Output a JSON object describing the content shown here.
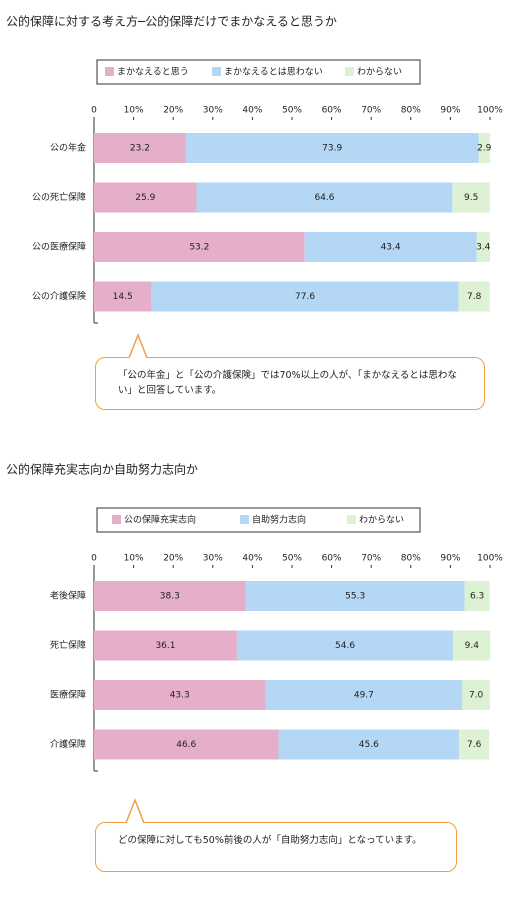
{
  "chart_data": [
    {
      "type": "stacked-bar",
      "title": "公的保障に対する考え方─公的保障だけでまかなえると思うか",
      "categories": [
        "公の年金",
        "公の死亡保障",
        "公の医療保障",
        "公の介護保険"
      ],
      "series": [
        {
          "name": "まかなえると思う",
          "color": "#e5afc9",
          "values": [
            23.2,
            25.9,
            53.2,
            14.5
          ]
        },
        {
          "name": "まかなえるとは思わない",
          "color": "#b3d7f5",
          "values": [
            73.9,
            64.6,
            43.4,
            77.6
          ]
        },
        {
          "name": "わからない",
          "color": "#ddf2d5",
          "values": [
            2.9,
            9.5,
            3.4,
            7.8
          ]
        }
      ],
      "xlim": [
        0,
        100
      ],
      "xticks": [
        0,
        {
          "value": 10,
          "label": "10%"
        },
        {
          "value": 20,
          "label": "20%"
        },
        {
          "value": 30,
          "label": "30%"
        },
        {
          "value": 40,
          "label": "40%"
        },
        {
          "value": 50,
          "label": "50%"
        },
        {
          "value": 60,
          "label": "60%"
        },
        {
          "value": 70,
          "label": "70%"
        },
        {
          "value": 80,
          "label": "80%"
        },
        {
          "value": 90,
          "label": "90%"
        },
        {
          "value": 100,
          "label": "100%"
        }
      ],
      "annotation": "「公の年金」と「公の介護保険」では70%以上の人が、「まかなえるとは思わない」と回答しています。"
    },
    {
      "type": "stacked-bar",
      "title": "公的保障充実志向か自助努力志向か",
      "categories": [
        "老後保障",
        "死亡保障",
        "医療保障",
        "介護保障"
      ],
      "series": [
        {
          "name": "公の保障充実志向",
          "color": "#e5afc9",
          "values": [
            38.3,
            36.1,
            43.3,
            46.6
          ]
        },
        {
          "name": "自助努力志向",
          "color": "#b3d7f5",
          "values": [
            55.3,
            54.6,
            49.7,
            45.6
          ]
        },
        {
          "name": "わからない",
          "color": "#ddf2d5",
          "values": [
            6.3,
            9.4,
            7.0,
            7.6
          ],
          "value_labels": [
            "6.3",
            "9.4",
            "7.0",
            "7.6"
          ]
        }
      ],
      "xlim": [
        0,
        100
      ],
      "xticks": [
        0,
        {
          "value": 10,
          "label": "10%"
        },
        {
          "value": 20,
          "label": "20%"
        },
        {
          "value": 30,
          "label": "30%"
        },
        {
          "value": 40,
          "label": "40%"
        },
        {
          "value": 50,
          "label": "50%"
        },
        {
          "value": 60,
          "label": "60%"
        },
        {
          "value": 70,
          "label": "70%"
        },
        {
          "value": 80,
          "label": "80%"
        },
        {
          "value": 90,
          "label": "90%"
        },
        {
          "value": 100,
          "label": "100%"
        }
      ],
      "annotation": "どの保障に対しても50%前後の人が「自助努力志向」となっています。"
    }
  ]
}
